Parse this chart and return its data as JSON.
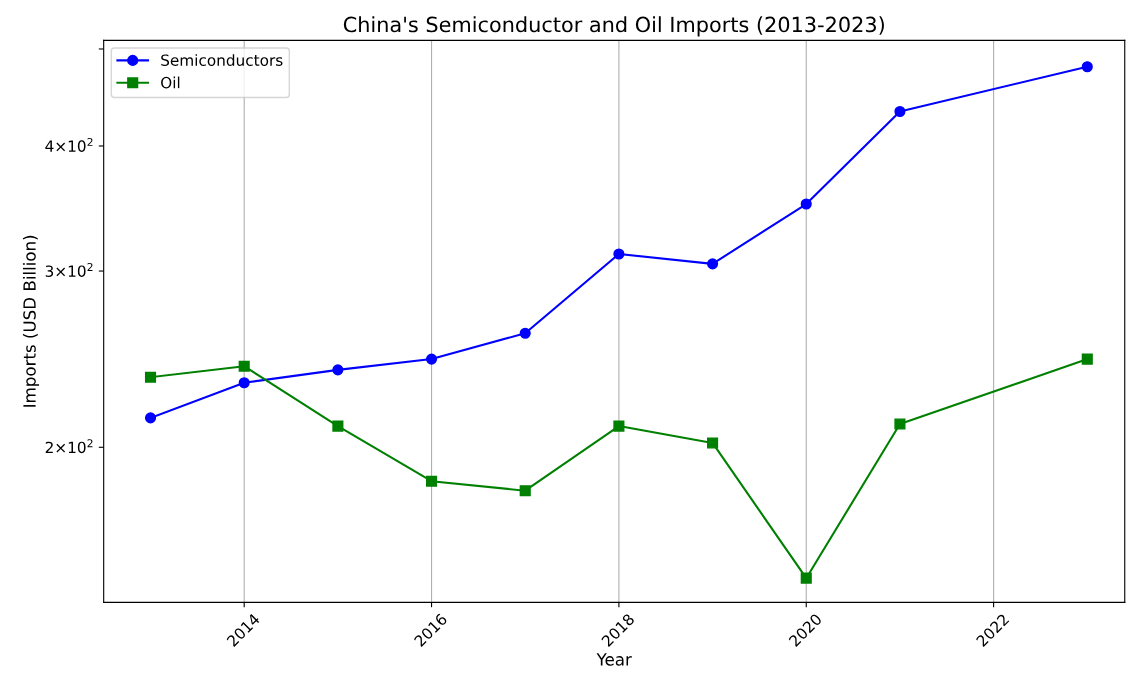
{
  "chart_data": {
    "type": "line",
    "title": "China's Semiconductor and Oil Imports (2013-2023)",
    "xlabel": "Year",
    "ylabel": "Imports (USD Billion)",
    "x": [
      2013,
      2014,
      2015,
      2016,
      2017,
      2018,
      2019,
      2020,
      2021,
      2023
    ],
    "series": [
      {
        "name": "Semiconductors",
        "color": "#0000ff",
        "marker": "circle",
        "values": [
          214,
          232,
          239,
          245,
          260,
          312,
          305,
          350,
          433,
          480
        ]
      },
      {
        "name": "Oil",
        "color": "#008000",
        "marker": "square",
        "values": [
          235,
          241,
          210,
          185,
          181,
          210,
          202,
          148,
          211,
          245
        ]
      }
    ],
    "log": "y",
    "xlim": [
      2012.5,
      2023.4
    ],
    "ylim": [
      140,
      510
    ],
    "xticks": [
      2014,
      2016,
      2018,
      2020,
      2022
    ],
    "yticks": [
      {
        "value": 200,
        "label": "2×10$^{2}$"
      },
      {
        "value": 300,
        "label": "3×10$^{2}$"
      },
      {
        "value": 400,
        "label": "4×10$^{2}$"
      },
      {
        "value": 500,
        "label": null
      }
    ],
    "grid": "x",
    "legend": "top left",
    "line_style": "solid"
  }
}
